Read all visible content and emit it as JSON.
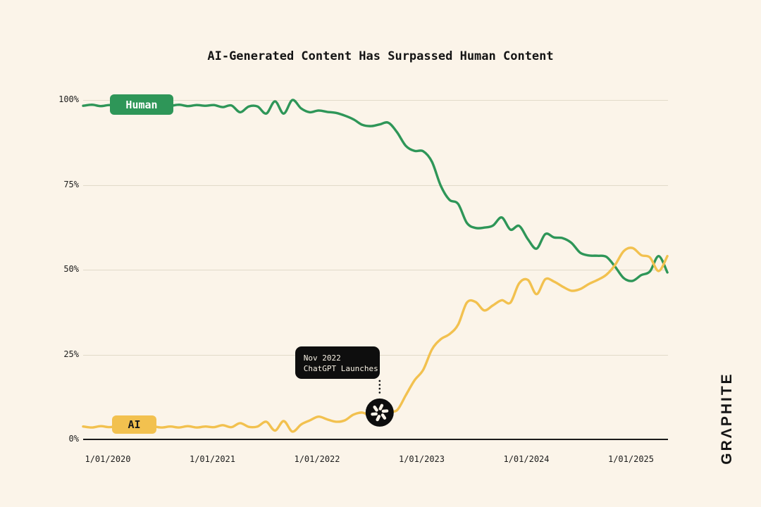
{
  "page": {
    "wordmark": "GRΛPHITE",
    "background_color": "#fbf4e9"
  },
  "chart_data": {
    "type": "line",
    "title": "AI-Generated Content Has Surpassed Human Content",
    "unit": "percent",
    "x_start": "2019-10",
    "x_interval": "monthly",
    "x_tick_labels": [
      "1/01/2020",
      "1/01/2021",
      "1/01/2022",
      "1/01/2023",
      "1/01/2024",
      "1/01/2025"
    ],
    "y_tick_labels": [
      "100%",
      "75%",
      "50%",
      "25%",
      "0%"
    ],
    "y_tick_values": [
      100,
      75,
      50,
      25,
      0
    ],
    "ylim": [
      0,
      100
    ],
    "grid": "horizontal",
    "legend_position": "on-line-badges",
    "series": [
      {
        "name": "Human",
        "color": "#2e9658",
        "badge_text_color": "#ffffff",
        "values": [
          98.3,
          98.6,
          98.2,
          98.5,
          98.2,
          98.6,
          98.3,
          98.5,
          98.2,
          98.5,
          98.3,
          98.6,
          98.2,
          98.5,
          98.3,
          98.5,
          97.9,
          98.4,
          96.4,
          98.1,
          98.1,
          96.0,
          99.6,
          96.0,
          100.0,
          97.5,
          96.4,
          96.9,
          96.5,
          96.2,
          95.4,
          94.3,
          92.7,
          92.3,
          92.8,
          93.3,
          90.5,
          86.5,
          85.0,
          84.9,
          81.8,
          74.8,
          70.6,
          69.4,
          63.8,
          62.3,
          62.4,
          63.0,
          65.4,
          61.8,
          62.9,
          59.0,
          56.2,
          60.5,
          59.5,
          59.3,
          57.9,
          55.0,
          54.2,
          54.1,
          53.8,
          50.9,
          47.5,
          46.7,
          48.4,
          49.5,
          54.0,
          49.2
        ]
      },
      {
        "name": "AI",
        "color": "#f2c14f",
        "badge_text_color": "#1a1a1a",
        "values": [
          3.8,
          3.5,
          3.9,
          3.6,
          3.9,
          3.5,
          3.8,
          3.5,
          3.8,
          3.5,
          3.8,
          3.5,
          3.9,
          3.5,
          3.8,
          3.6,
          4.2,
          3.6,
          4.8,
          3.7,
          3.8,
          5.2,
          2.6,
          5.4,
          2.3,
          4.4,
          5.6,
          6.7,
          5.9,
          5.2,
          5.6,
          7.3,
          7.9,
          7.0,
          7.9,
          8.4,
          8.6,
          13.0,
          17.4,
          20.5,
          26.5,
          29.5,
          31.0,
          33.8,
          40.3,
          40.5,
          38.0,
          39.5,
          41.0,
          40.3,
          46.0,
          47.0,
          42.8,
          47.2,
          46.5,
          45.0,
          43.8,
          44.3,
          45.8,
          47.0,
          48.5,
          51.4,
          55.5,
          56.4,
          54.3,
          53.6,
          49.6,
          54.0
        ]
      }
    ],
    "annotation": {
      "line1": "Nov 2022",
      "line2": "ChatGPT Launches",
      "icon": "openai-logo",
      "attached_series": "AI",
      "month_index": 34,
      "tooltip_bg": "#0e0e0e",
      "tooltip_text_color": "#f7f1e4"
    }
  }
}
